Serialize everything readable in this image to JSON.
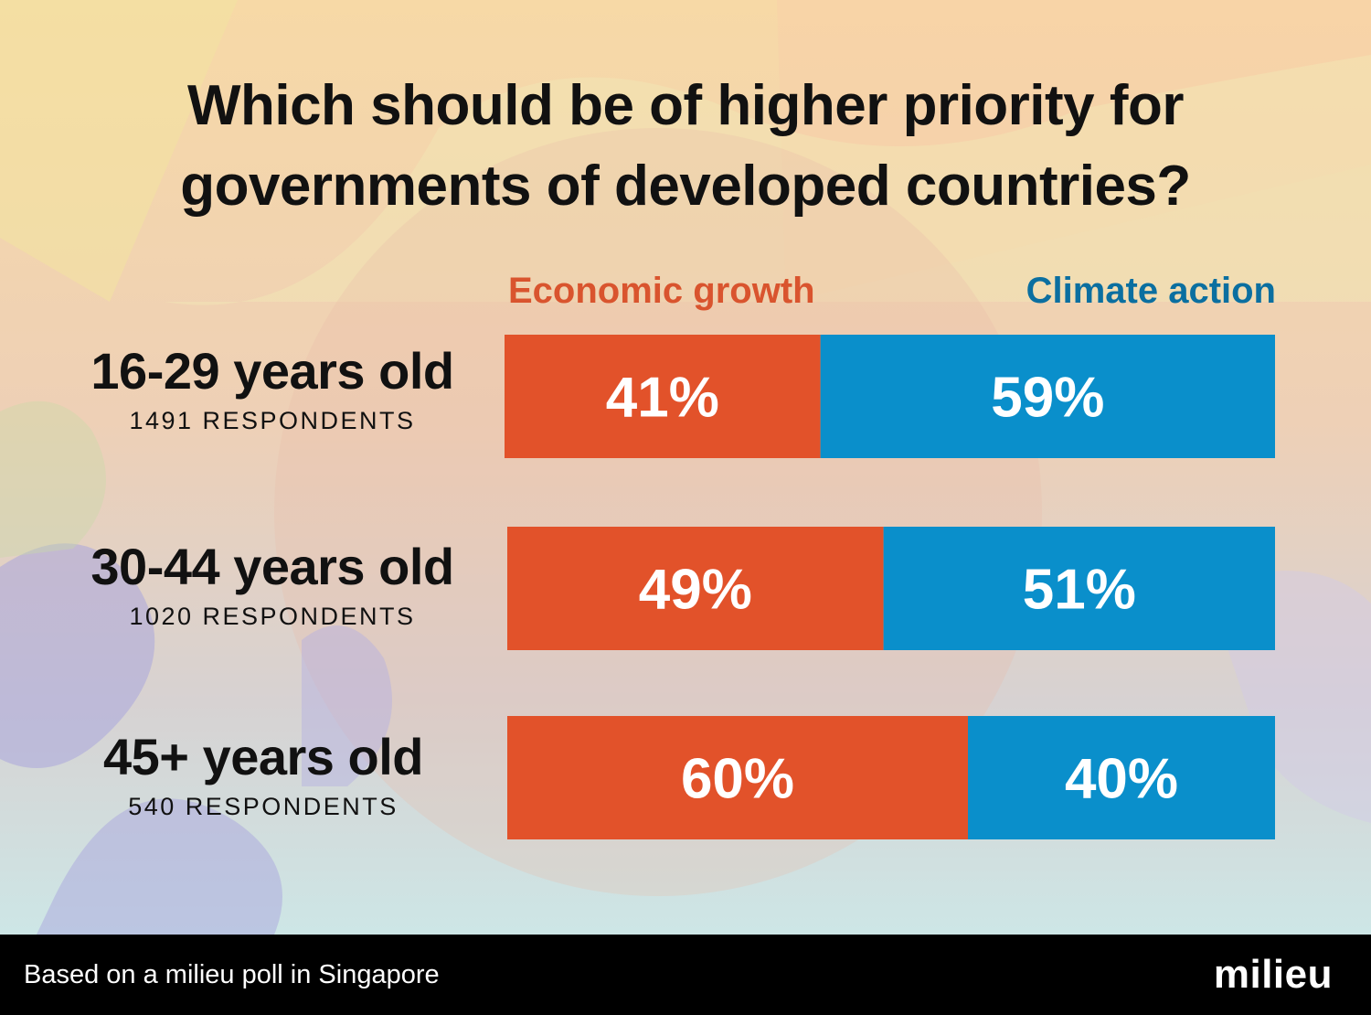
{
  "colors": {
    "economic": "#e2522a",
    "climate": "#0a8fcb",
    "economic_text": "#d9542e",
    "climate_text": "#0b6fa0"
  },
  "footer": {
    "note": "Based on a milieu poll in Singapore",
    "brand": "milieu"
  },
  "chart_data": {
    "type": "bar",
    "orientation": "horizontal",
    "stacked": true,
    "title": "Which should be of higher priority for governments of developed countries?",
    "legend": [
      "Economic growth",
      "Climate action"
    ],
    "legend_placement": "top",
    "categories": [
      "16-29 years old",
      "30-44 years old",
      "45+ years old"
    ],
    "respondents": [
      "1491 RESPONDENTS",
      "1020 RESPONDENTS",
      "540 RESPONDENTS"
    ],
    "series": [
      {
        "name": "Economic growth",
        "values": [
          41,
          49,
          60
        ],
        "labels": [
          "41%",
          "49%",
          "60%"
        ]
      },
      {
        "name": "Climate action",
        "values": [
          59,
          51,
          40
        ],
        "labels": [
          "59%",
          "51%",
          "40%"
        ]
      }
    ],
    "xlim": [
      0,
      100
    ],
    "grid": false
  }
}
